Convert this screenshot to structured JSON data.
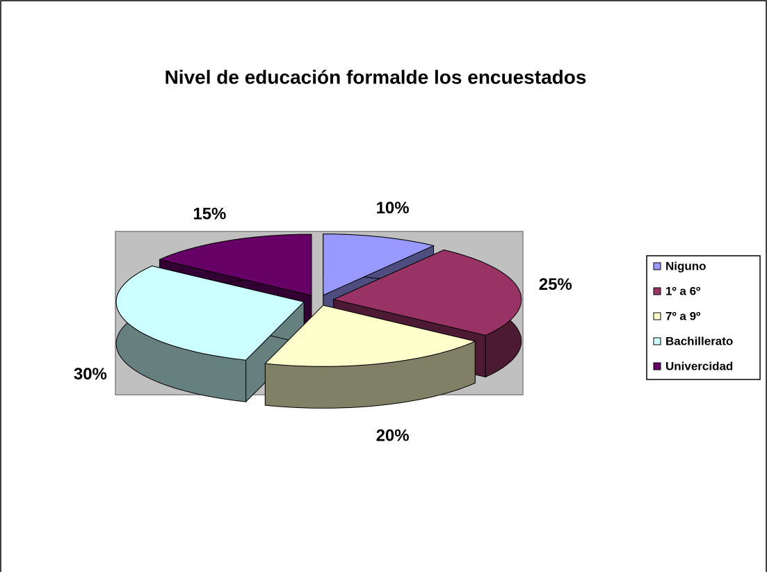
{
  "chart_data": {
    "type": "pie",
    "title": "Nivel de educación formalde los encuestados",
    "categories": [
      "Niguno",
      "1º a 6º",
      "7º  a 9º",
      "Bachillerato",
      "Univercidad"
    ],
    "values": [
      10,
      25,
      20,
      30,
      15
    ],
    "value_labels": [
      "10%",
      "25%",
      "20%",
      "30%",
      "15%"
    ],
    "colors": [
      "#9999ff",
      "#993366",
      "#ffffcc",
      "#ccffff",
      "#660066"
    ],
    "legend": "right"
  }
}
